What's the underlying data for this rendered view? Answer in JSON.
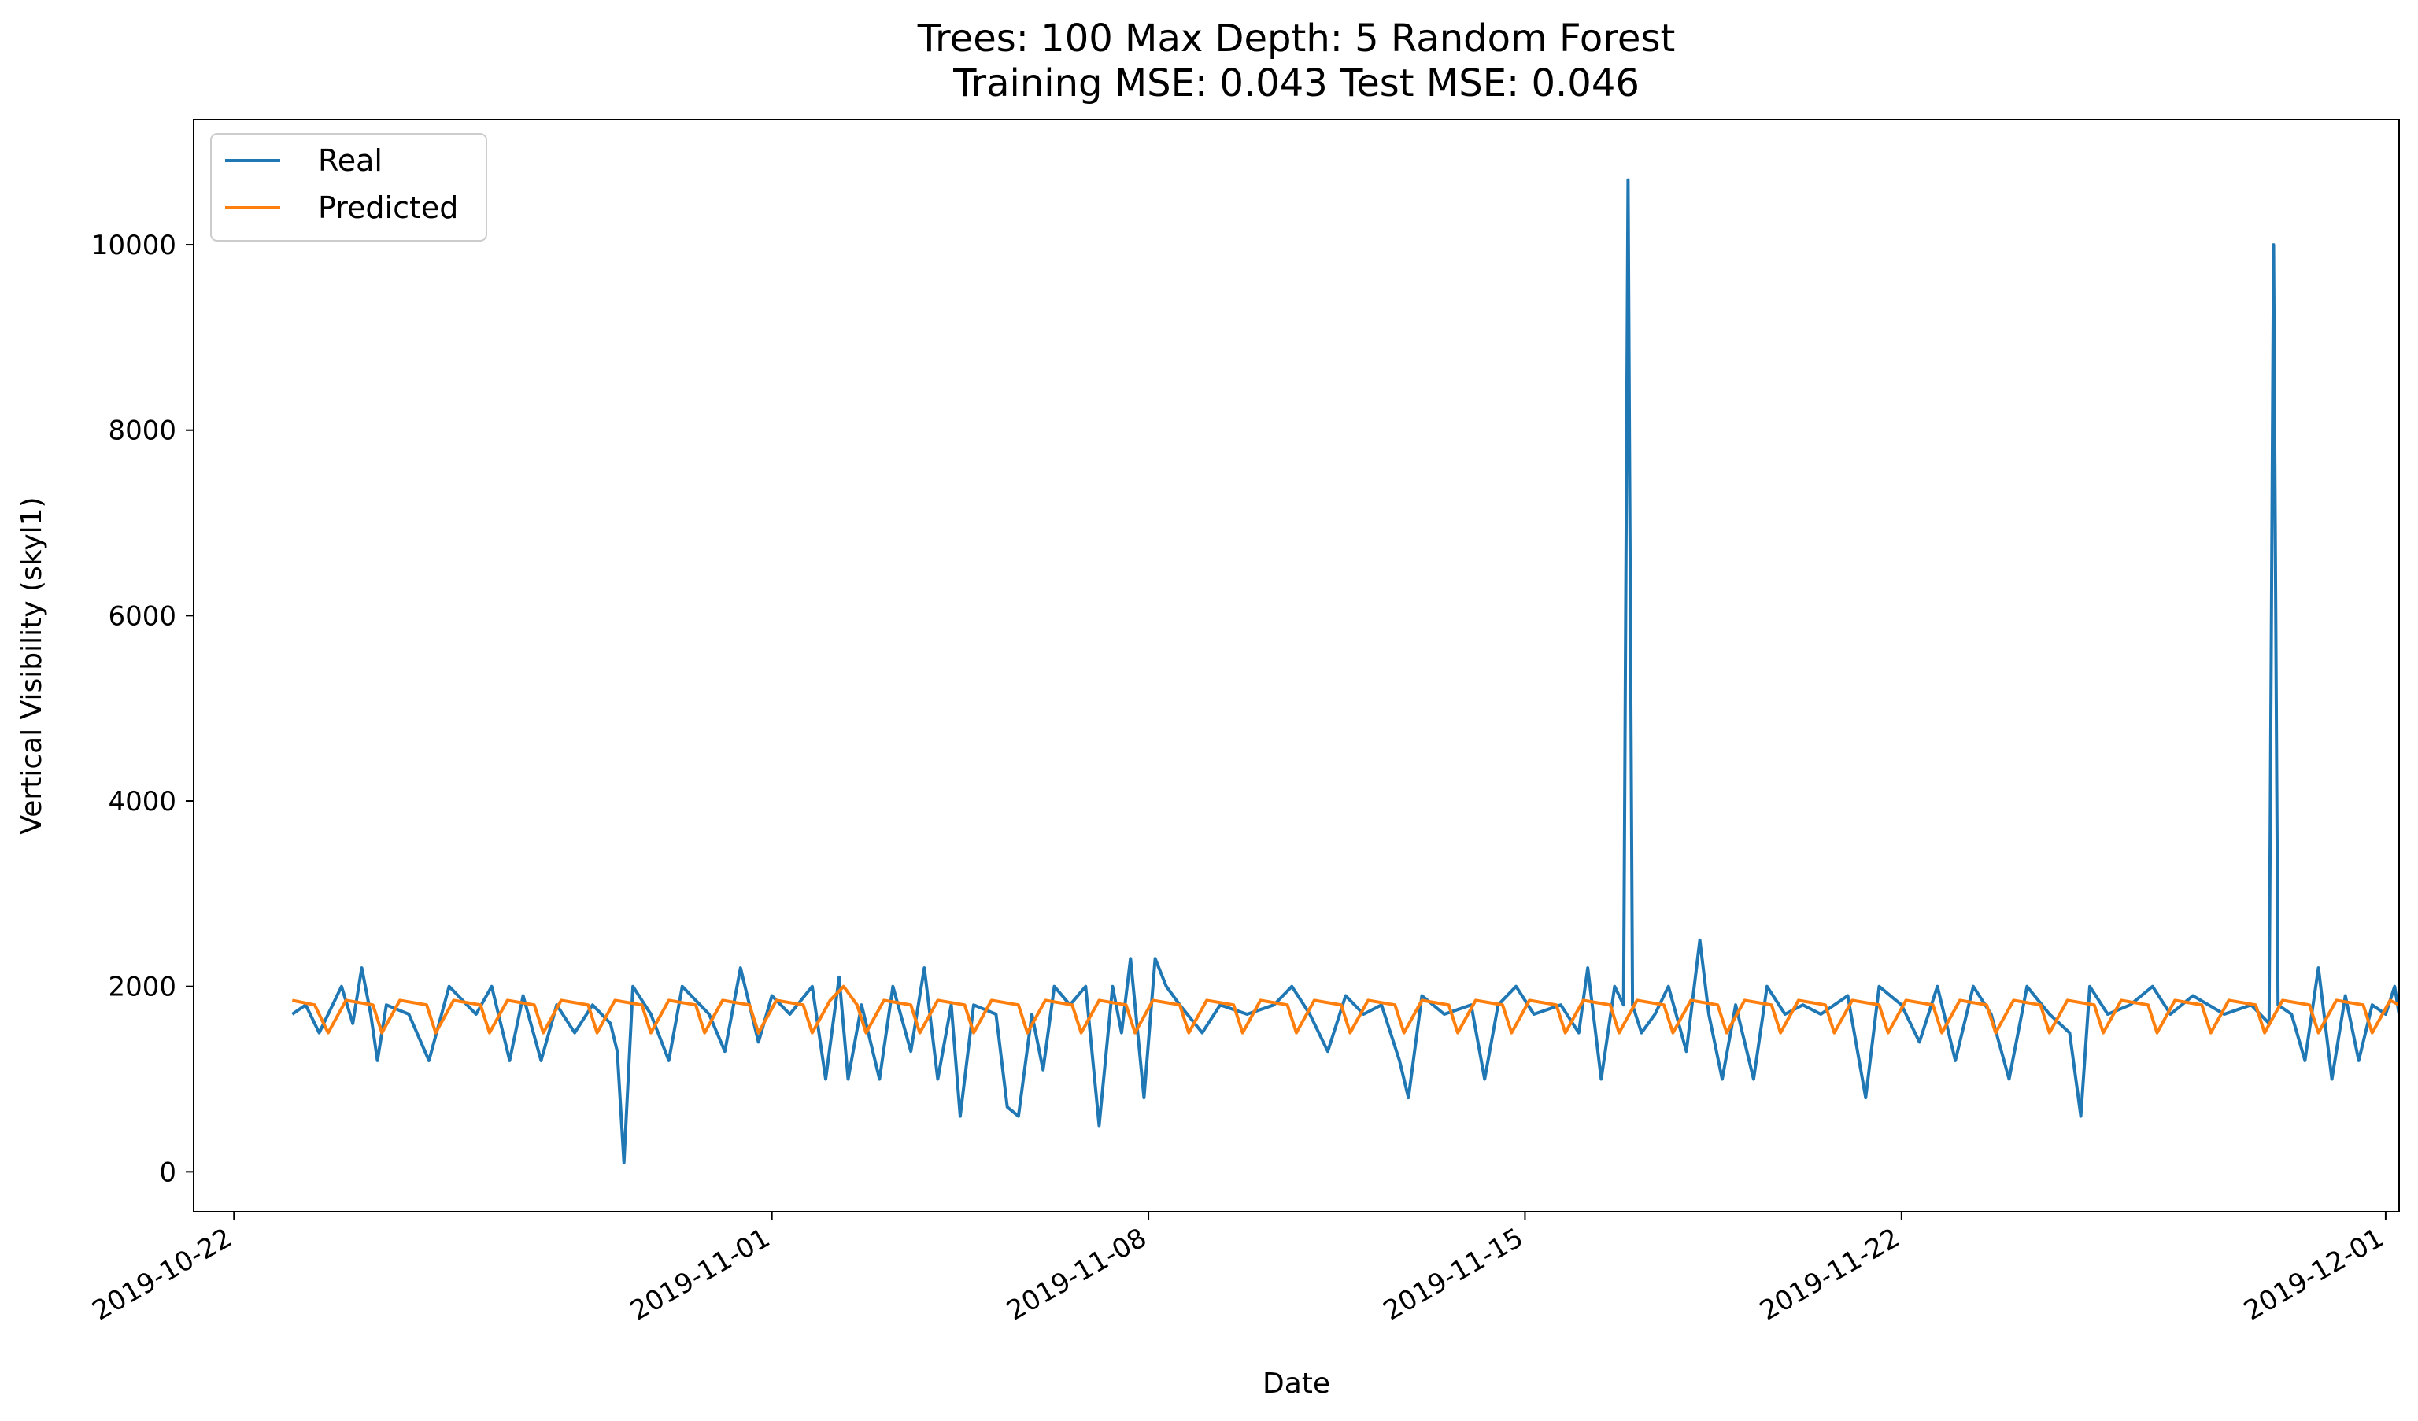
{
  "chart_data": {
    "type": "line",
    "title": "Trees: 100 Max Depth: 5 Random Forest",
    "subtitle": "Training MSE: 0.043 Test MSE: 0.046",
    "xlabel": "Date",
    "ylabel": "Vertical Visibility (skyl1)",
    "x_range": [
      "2019-10-21T06:00",
      "2019-12-01T06:00"
    ],
    "ylim": [
      -430,
      11350
    ],
    "x_ticks": [
      "2019-10-22",
      "2019-11-01",
      "2019-11-08",
      "2019-11-15",
      "2019-11-22",
      "2019-12-01"
    ],
    "y_ticks": [
      0,
      2000,
      4000,
      6000,
      8000,
      10000
    ],
    "grid": false,
    "legend_position": "top-left",
    "series": [
      {
        "name": "Real",
        "color": "#1f77b4",
        "points": [
          [
            "2019-10-23T02:00",
            1700
          ],
          [
            "2019-10-23T08:00",
            1800
          ],
          [
            "2019-10-23T14:00",
            1500
          ],
          [
            "2019-10-24T00:00",
            2000
          ],
          [
            "2019-10-24T05:00",
            1600
          ],
          [
            "2019-10-24T09:00",
            2200
          ],
          [
            "2019-10-24T13:00",
            1700
          ],
          [
            "2019-10-24T16:00",
            1200
          ],
          [
            "2019-10-24T20:00",
            1800
          ],
          [
            "2019-10-25T06:00",
            1700
          ],
          [
            "2019-10-25T15:00",
            1200
          ],
          [
            "2019-10-26T00:00",
            2000
          ],
          [
            "2019-10-26T12:00",
            1700
          ],
          [
            "2019-10-26T19:00",
            2000
          ],
          [
            "2019-10-27T03:00",
            1200
          ],
          [
            "2019-10-27T09:00",
            1900
          ],
          [
            "2019-10-27T17:00",
            1200
          ],
          [
            "2019-10-28T00:00",
            1800
          ],
          [
            "2019-10-28T08:00",
            1500
          ],
          [
            "2019-10-28T16:00",
            1800
          ],
          [
            "2019-10-29T00:00",
            1600
          ],
          [
            "2019-10-29T03:00",
            1300
          ],
          [
            "2019-10-29T06:00",
            100
          ],
          [
            "2019-10-29T10:00",
            2000
          ],
          [
            "2019-10-29T18:00",
            1700
          ],
          [
            "2019-10-30T02:00",
            1200
          ],
          [
            "2019-10-30T08:00",
            2000
          ],
          [
            "2019-10-30T20:00",
            1700
          ],
          [
            "2019-10-31T03:00",
            1300
          ],
          [
            "2019-10-31T10:00",
            2200
          ],
          [
            "2019-10-31T18:00",
            1400
          ],
          [
            "2019-11-01T00:00",
            1900
          ],
          [
            "2019-11-01T08:00",
            1700
          ],
          [
            "2019-11-01T18:00",
            2000
          ],
          [
            "2019-11-02T00:00",
            1000
          ],
          [
            "2019-11-02T06:00",
            2100
          ],
          [
            "2019-11-02T10:00",
            1000
          ],
          [
            "2019-11-02T16:00",
            1800
          ],
          [
            "2019-11-03T00:00",
            1000
          ],
          [
            "2019-11-03T06:00",
            2000
          ],
          [
            "2019-11-03T14:00",
            1300
          ],
          [
            "2019-11-03T20:00",
            2200
          ],
          [
            "2019-11-04T02:00",
            1000
          ],
          [
            "2019-11-04T08:00",
            1800
          ],
          [
            "2019-11-04T12:00",
            600
          ],
          [
            "2019-11-04T18:00",
            1800
          ],
          [
            "2019-11-05T04:00",
            1700
          ],
          [
            "2019-11-05T09:00",
            700
          ],
          [
            "2019-11-05T14:00",
            600
          ],
          [
            "2019-11-05T20:00",
            1700
          ],
          [
            "2019-11-06T01:00",
            1100
          ],
          [
            "2019-11-06T06:00",
            2000
          ],
          [
            "2019-11-06T13:00",
            1800
          ],
          [
            "2019-11-06T20:00",
            2000
          ],
          [
            "2019-11-07T02:00",
            500
          ],
          [
            "2019-11-07T08:00",
            2000
          ],
          [
            "2019-11-07T12:00",
            1500
          ],
          [
            "2019-11-07T16:00",
            2300
          ],
          [
            "2019-11-07T22:00",
            800
          ],
          [
            "2019-11-08T03:00",
            2300
          ],
          [
            "2019-11-08T08:00",
            2000
          ],
          [
            "2019-11-08T14:00",
            1800
          ],
          [
            "2019-11-09T00:00",
            1500
          ],
          [
            "2019-11-09T08:00",
            1800
          ],
          [
            "2019-11-09T20:00",
            1700
          ],
          [
            "2019-11-10T08:00",
            1800
          ],
          [
            "2019-11-10T16:00",
            2000
          ],
          [
            "2019-11-11T00:00",
            1700
          ],
          [
            "2019-11-11T08:00",
            1300
          ],
          [
            "2019-11-11T16:00",
            1900
          ],
          [
            "2019-11-12T00:00",
            1700
          ],
          [
            "2019-11-12T08:00",
            1800
          ],
          [
            "2019-11-12T16:00",
            1200
          ],
          [
            "2019-11-12T20:00",
            800
          ],
          [
            "2019-11-13T02:00",
            1900
          ],
          [
            "2019-11-13T12:00",
            1700
          ],
          [
            "2019-11-14T00:00",
            1800
          ],
          [
            "2019-11-14T06:00",
            1000
          ],
          [
            "2019-11-14T12:00",
            1800
          ],
          [
            "2019-11-14T20:00",
            2000
          ],
          [
            "2019-11-15T04:00",
            1700
          ],
          [
            "2019-11-15T16:00",
            1800
          ],
          [
            "2019-11-16T00:00",
            1500
          ],
          [
            "2019-11-16T04:00",
            2200
          ],
          [
            "2019-11-16T10:00",
            1000
          ],
          [
            "2019-11-16T16:00",
            2000
          ],
          [
            "2019-11-16T20:00",
            1800
          ],
          [
            "2019-11-16T22:00",
            10700
          ],
          [
            "2019-11-17T00:00",
            1800
          ],
          [
            "2019-11-17T04:00",
            1500
          ],
          [
            "2019-11-17T10:00",
            1700
          ],
          [
            "2019-11-17T16:00",
            2000
          ],
          [
            "2019-11-18T00:00",
            1300
          ],
          [
            "2019-11-18T06:00",
            2500
          ],
          [
            "2019-11-18T10:00",
            1700
          ],
          [
            "2019-11-18T16:00",
            1000
          ],
          [
            "2019-11-18T22:00",
            1800
          ],
          [
            "2019-11-19T06:00",
            1000
          ],
          [
            "2019-11-19T12:00",
            2000
          ],
          [
            "2019-11-19T20:00",
            1700
          ],
          [
            "2019-11-20T04:00",
            1800
          ],
          [
            "2019-11-20T12:00",
            1700
          ],
          [
            "2019-11-21T00:00",
            1900
          ],
          [
            "2019-11-21T08:00",
            800
          ],
          [
            "2019-11-21T14:00",
            2000
          ],
          [
            "2019-11-22T00:00",
            1800
          ],
          [
            "2019-11-22T08:00",
            1400
          ],
          [
            "2019-11-22T16:00",
            2000
          ],
          [
            "2019-11-23T00:00",
            1200
          ],
          [
            "2019-11-23T08:00",
            2000
          ],
          [
            "2019-11-23T16:00",
            1700
          ],
          [
            "2019-11-24T00:00",
            1000
          ],
          [
            "2019-11-24T08:00",
            2000
          ],
          [
            "2019-11-24T18:00",
            1700
          ],
          [
            "2019-11-25T03:00",
            1500
          ],
          [
            "2019-11-25T08:00",
            600
          ],
          [
            "2019-11-25T12:00",
            2000
          ],
          [
            "2019-11-25T20:00",
            1700
          ],
          [
            "2019-11-26T06:00",
            1800
          ],
          [
            "2019-11-26T16:00",
            2000
          ],
          [
            "2019-11-27T00:00",
            1700
          ],
          [
            "2019-11-27T10:00",
            1900
          ],
          [
            "2019-11-28T00:00",
            1700
          ],
          [
            "2019-11-28T12:00",
            1800
          ],
          [
            "2019-11-28T20:00",
            1600
          ],
          [
            "2019-11-28T22:00",
            10000
          ],
          [
            "2019-11-29T00:00",
            1800
          ],
          [
            "2019-11-29T06:00",
            1700
          ],
          [
            "2019-11-29T12:00",
            1200
          ],
          [
            "2019-11-29T18:00",
            2200
          ],
          [
            "2019-11-30T00:00",
            1000
          ],
          [
            "2019-11-30T06:00",
            1900
          ],
          [
            "2019-11-30T12:00",
            1200
          ],
          [
            "2019-11-30T18:00",
            1800
          ],
          [
            "2019-12-01T00:00",
            1700
          ],
          [
            "2019-12-01T04:00",
            2000
          ],
          [
            "2019-12-01T06:00",
            1700
          ]
        ]
      },
      {
        "name": "Predicted",
        "color": "#ff7f0e",
        "points": [
          [
            "2019-10-23T02:00",
            1850
          ],
          [
            "2019-10-23T12:00",
            1800
          ],
          [
            "2019-10-23T18:00",
            1500
          ],
          [
            "2019-10-24T02:00",
            1850
          ],
          [
            "2019-10-24T14:00",
            1800
          ],
          [
            "2019-10-24T18:00",
            1500
          ],
          [
            "2019-10-25T02:00",
            1850
          ],
          [
            "2019-10-25T14:00",
            1800
          ],
          [
            "2019-10-25T18:00",
            1500
          ],
          [
            "2019-10-26T02:00",
            1850
          ],
          [
            "2019-10-26T14:00",
            1800
          ],
          [
            "2019-10-26T18:00",
            1500
          ],
          [
            "2019-10-27T02:00",
            1850
          ],
          [
            "2019-10-27T14:00",
            1800
          ],
          [
            "2019-10-27T18:00",
            1500
          ],
          [
            "2019-10-28T02:00",
            1850
          ],
          [
            "2019-10-28T14:00",
            1800
          ],
          [
            "2019-10-28T18:00",
            1500
          ],
          [
            "2019-10-29T02:00",
            1850
          ],
          [
            "2019-10-29T14:00",
            1800
          ],
          [
            "2019-10-29T18:00",
            1500
          ],
          [
            "2019-10-30T02:00",
            1850
          ],
          [
            "2019-10-30T14:00",
            1800
          ],
          [
            "2019-10-30T18:00",
            1500
          ],
          [
            "2019-10-31T02:00",
            1850
          ],
          [
            "2019-10-31T14:00",
            1800
          ],
          [
            "2019-10-31T18:00",
            1500
          ],
          [
            "2019-11-01T02:00",
            1850
          ],
          [
            "2019-11-01T14:00",
            1800
          ],
          [
            "2019-11-01T18:00",
            1500
          ],
          [
            "2019-11-02T02:00",
            1850
          ],
          [
            "2019-11-02T08:00",
            2000
          ],
          [
            "2019-11-02T14:00",
            1800
          ],
          [
            "2019-11-02T18:00",
            1500
          ],
          [
            "2019-11-03T02:00",
            1850
          ],
          [
            "2019-11-03T14:00",
            1800
          ],
          [
            "2019-11-03T18:00",
            1500
          ],
          [
            "2019-11-04T02:00",
            1850
          ],
          [
            "2019-11-04T14:00",
            1800
          ],
          [
            "2019-11-04T18:00",
            1500
          ],
          [
            "2019-11-05T02:00",
            1850
          ],
          [
            "2019-11-05T14:00",
            1800
          ],
          [
            "2019-11-05T18:00",
            1500
          ],
          [
            "2019-11-06T02:00",
            1850
          ],
          [
            "2019-11-06T14:00",
            1800
          ],
          [
            "2019-11-06T18:00",
            1500
          ],
          [
            "2019-11-07T02:00",
            1850
          ],
          [
            "2019-11-07T14:00",
            1800
          ],
          [
            "2019-11-07T18:00",
            1500
          ],
          [
            "2019-11-08T02:00",
            1850
          ],
          [
            "2019-11-08T14:00",
            1800
          ],
          [
            "2019-11-08T18:00",
            1500
          ],
          [
            "2019-11-09T02:00",
            1850
          ],
          [
            "2019-11-09T14:00",
            1800
          ],
          [
            "2019-11-09T18:00",
            1500
          ],
          [
            "2019-11-10T02:00",
            1850
          ],
          [
            "2019-11-10T14:00",
            1800
          ],
          [
            "2019-11-10T18:00",
            1500
          ],
          [
            "2019-11-11T02:00",
            1850
          ],
          [
            "2019-11-11T14:00",
            1800
          ],
          [
            "2019-11-11T18:00",
            1500
          ],
          [
            "2019-11-12T02:00",
            1850
          ],
          [
            "2019-11-12T14:00",
            1800
          ],
          [
            "2019-11-12T18:00",
            1500
          ],
          [
            "2019-11-13T02:00",
            1850
          ],
          [
            "2019-11-13T14:00",
            1800
          ],
          [
            "2019-11-13T18:00",
            1500
          ],
          [
            "2019-11-14T02:00",
            1850
          ],
          [
            "2019-11-14T14:00",
            1800
          ],
          [
            "2019-11-14T18:00",
            1500
          ],
          [
            "2019-11-15T02:00",
            1850
          ],
          [
            "2019-11-15T14:00",
            1800
          ],
          [
            "2019-11-15T18:00",
            1500
          ],
          [
            "2019-11-16T02:00",
            1850
          ],
          [
            "2019-11-16T14:00",
            1800
          ],
          [
            "2019-11-16T18:00",
            1500
          ],
          [
            "2019-11-17T02:00",
            1850
          ],
          [
            "2019-11-17T14:00",
            1800
          ],
          [
            "2019-11-17T18:00",
            1500
          ],
          [
            "2019-11-18T02:00",
            1850
          ],
          [
            "2019-11-18T14:00",
            1800
          ],
          [
            "2019-11-18T18:00",
            1500
          ],
          [
            "2019-11-19T02:00",
            1850
          ],
          [
            "2019-11-19T14:00",
            1800
          ],
          [
            "2019-11-19T18:00",
            1500
          ],
          [
            "2019-11-20T02:00",
            1850
          ],
          [
            "2019-11-20T14:00",
            1800
          ],
          [
            "2019-11-20T18:00",
            1500
          ],
          [
            "2019-11-21T02:00",
            1850
          ],
          [
            "2019-11-21T14:00",
            1800
          ],
          [
            "2019-11-21T18:00",
            1500
          ],
          [
            "2019-11-22T02:00",
            1850
          ],
          [
            "2019-11-22T14:00",
            1800
          ],
          [
            "2019-11-22T18:00",
            1500
          ],
          [
            "2019-11-23T02:00",
            1850
          ],
          [
            "2019-11-23T14:00",
            1800
          ],
          [
            "2019-11-23T18:00",
            1500
          ],
          [
            "2019-11-24T02:00",
            1850
          ],
          [
            "2019-11-24T14:00",
            1800
          ],
          [
            "2019-11-24T18:00",
            1500
          ],
          [
            "2019-11-25T02:00",
            1850
          ],
          [
            "2019-11-25T14:00",
            1800
          ],
          [
            "2019-11-25T18:00",
            1500
          ],
          [
            "2019-11-26T02:00",
            1850
          ],
          [
            "2019-11-26T14:00",
            1800
          ],
          [
            "2019-11-26T18:00",
            1500
          ],
          [
            "2019-11-27T02:00",
            1850
          ],
          [
            "2019-11-27T14:00",
            1800
          ],
          [
            "2019-11-27T18:00",
            1500
          ],
          [
            "2019-11-28T02:00",
            1850
          ],
          [
            "2019-11-28T14:00",
            1800
          ],
          [
            "2019-11-28T18:00",
            1500
          ],
          [
            "2019-11-29T02:00",
            1850
          ],
          [
            "2019-11-29T14:00",
            1800
          ],
          [
            "2019-11-29T18:00",
            1500
          ],
          [
            "2019-11-30T02:00",
            1850
          ],
          [
            "2019-11-30T14:00",
            1800
          ],
          [
            "2019-11-30T18:00",
            1500
          ],
          [
            "2019-12-01T02:00",
            1850
          ],
          [
            "2019-12-01T06:00",
            1800
          ]
        ]
      }
    ]
  }
}
